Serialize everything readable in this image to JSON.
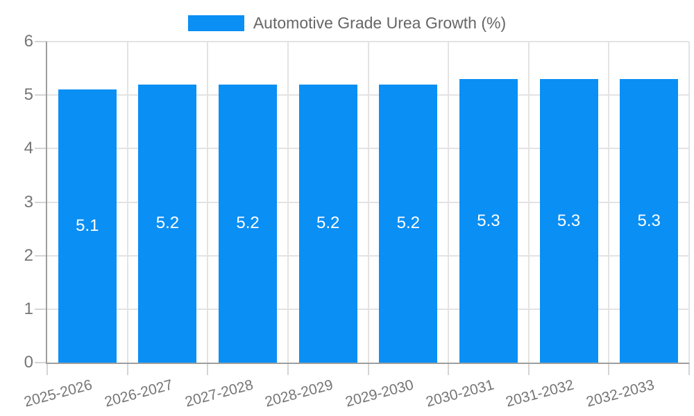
{
  "chart": {
    "legend": {
      "label": "Automotive Grade Urea Growth (%)"
    },
    "colors": {
      "bar": "#0a8ff4",
      "bar_label": "#ffffff",
      "grid": "#e3e3e3",
      "tick": "#d4d4d4",
      "axis": "#9e9e9e",
      "axis_label": "#757575",
      "legend_text": "#666666",
      "background": "#ffffff"
    }
  },
  "chart_data": {
    "type": "bar",
    "title": "Automotive Grade Urea Growth (%)",
    "categories": [
      "2025-2026",
      "2026-2027",
      "2027-2028",
      "2028-2029",
      "2029-2030",
      "2030-2031",
      "2031-2032",
      "2032-2033"
    ],
    "values": [
      5.1,
      5.2,
      5.2,
      5.2,
      5.2,
      5.3,
      5.3,
      5.3
    ],
    "bar_labels": [
      "5.1",
      "5.2",
      "5.2",
      "5.2",
      "5.2",
      "5.3",
      "5.3",
      "5.3"
    ],
    "series": [
      {
        "name": "Automotive Grade Urea Growth (%)",
        "values": [
          5.1,
          5.2,
          5.2,
          5.2,
          5.2,
          5.3,
          5.3,
          5.3
        ]
      }
    ],
    "xlabel": "",
    "ylabel": "",
    "ylim": [
      0,
      6
    ],
    "yticks": [
      0,
      1,
      2,
      3,
      4,
      5,
      6
    ],
    "grid": true,
    "legend_position": "top",
    "value_labels_inside_bars": true,
    "x_label_rotation_deg": -15
  }
}
